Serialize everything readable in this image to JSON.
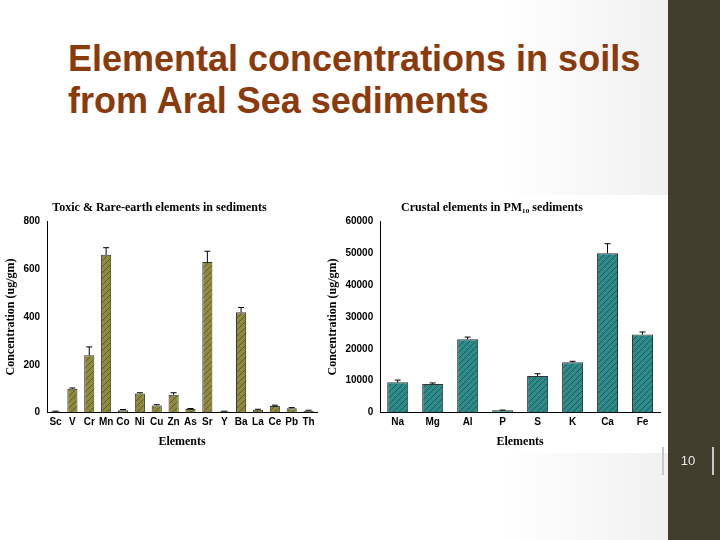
{
  "title": "Elemental concentrations in soils from Aral Sea sediments",
  "slide_number": "10",
  "chart_data": [
    {
      "type": "bar",
      "title": "Toxic & Rare-earth elements in sediments",
      "x_label": "Elements",
      "y_label": "Concentration (ug/gm)",
      "categories": [
        "Sc",
        "V",
        "Cr",
        "Mn",
        "Co",
        "Ni",
        "Cu",
        "Zn",
        "As",
        "Sr",
        "Y",
        "Ba",
        "La",
        "Ce",
        "Pb",
        "Th"
      ],
      "values": [
        5,
        100,
        240,
        660,
        10,
        80,
        30,
        75,
        15,
        630,
        5,
        420,
        12,
        28,
        18,
        8
      ],
      "errors": [
        1,
        3,
        35,
        30,
        3,
        3,
        3,
        8,
        2,
        45,
        1,
        20,
        2,
        3,
        3,
        2
      ],
      "color": "#8e8c3c",
      "ylim": [
        0,
        800
      ],
      "yticks": [
        0,
        200,
        400,
        600,
        800
      ],
      "grid": false
    },
    {
      "type": "bar",
      "title": "Crustal elements in PM₁₀ sediments",
      "x_label": "Elements",
      "y_label": "Concentration (ug/gm)",
      "categories": [
        "Na",
        "Mg",
        "Al",
        "P",
        "S",
        "K",
        "Ca",
        "Fe"
      ],
      "values": [
        9500,
        9000,
        23000,
        700,
        11500,
        15800,
        50000,
        24500
      ],
      "errors": [
        700,
        300,
        700,
        100,
        700,
        300,
        3000,
        800
      ],
      "color": "#2f8a8a",
      "ylim": [
        0,
        60000
      ],
      "yticks": [
        0,
        10000,
        20000,
        30000,
        40000,
        50000,
        60000
      ],
      "grid": false
    }
  ]
}
